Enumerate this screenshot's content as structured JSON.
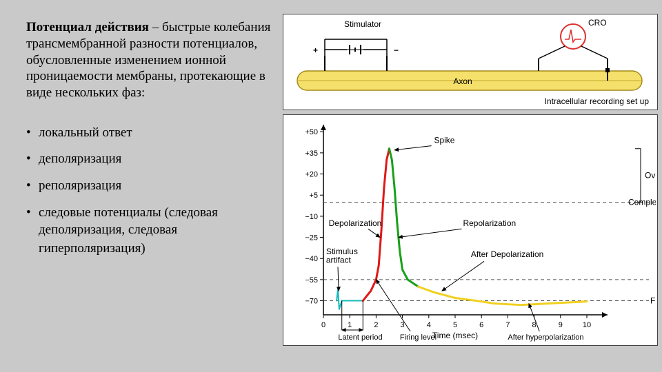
{
  "text": {
    "title_bold": "Потенциал действия",
    "title_rest": " – быстрые колебания трансмембранной разности потенциалов, обусловленные изменением ионной проницаемости мембраны, протекающие в виде нескольких фаз:",
    "bullets": [
      "локальный ответ",
      "деполяризация",
      "реполяризация",
      "следовые потенциалы (следовая деполяризация, следовая"
    ],
    "bullet4_cont": "гиперполяризация)"
  },
  "fig_top": {
    "labels": {
      "stimulator": "Stimulator",
      "cro": "CRO",
      "axon": "Axon",
      "setup": "Intracellular recording set up",
      "plus": "+",
      "minus": "−"
    },
    "colors": {
      "axon_fill": "#f4e06a",
      "axon_stroke": "#a48a1a",
      "electrode": "#000000",
      "cro_circle": "#e03030",
      "cro_trace": "#e03030",
      "bg": "#ffffff"
    }
  },
  "chart": {
    "type": "line",
    "x_axis": {
      "label": "Time (msec)",
      "ticks": [
        0,
        1,
        2,
        3,
        4,
        5,
        6,
        7,
        8,
        9,
        10
      ],
      "xlim": [
        0,
        10
      ]
    },
    "y_axis": {
      "ticks": [
        -70,
        -55,
        -40,
        -25,
        -10,
        5,
        20,
        35,
        50
      ],
      "tick_labels": [
        "−70",
        "−55",
        "−40",
        "−25",
        "−10",
        "+5",
        "+20",
        "+35",
        "+50"
      ],
      "ylim": [
        -80,
        55
      ]
    },
    "colors": {
      "bg": "#ffffff",
      "axis": "#000000",
      "dash": "#555555",
      "stim_artifact": "#16b9b9",
      "latent": "#16b9b9",
      "depol": "#e01818",
      "repol": "#18a018",
      "after_depol": "#f0d020",
      "after_hyper": "#f0d020",
      "arrow": "#000000"
    },
    "dashed_lines_y": [
      0,
      -55,
      -70
    ],
    "series": {
      "stim_artifact": {
        "points": [
          [
            0.5,
            -70
          ],
          [
            0.55,
            -62
          ],
          [
            0.6,
            -76
          ],
          [
            0.7,
            -70
          ]
        ],
        "width": 2
      },
      "latent": {
        "points": [
          [
            0.7,
            -70
          ],
          [
            1.5,
            -70
          ]
        ],
        "width": 2
      },
      "depol": {
        "points": [
          [
            1.5,
            -70
          ],
          [
            1.8,
            -63
          ],
          [
            2.0,
            -55
          ],
          [
            2.1,
            -45
          ],
          [
            2.2,
            -20
          ],
          [
            2.3,
            10
          ],
          [
            2.4,
            30
          ],
          [
            2.5,
            38
          ]
        ],
        "width": 3
      },
      "repol": {
        "points": [
          [
            2.5,
            38
          ],
          [
            2.6,
            30
          ],
          [
            2.7,
            10
          ],
          [
            2.8,
            -15
          ],
          [
            2.9,
            -35
          ],
          [
            3.0,
            -48
          ],
          [
            3.2,
            -55
          ],
          [
            3.6,
            -60
          ]
        ],
        "width": 3
      },
      "after_depol": {
        "points": [
          [
            3.6,
            -60
          ],
          [
            4.2,
            -64
          ],
          [
            5.0,
            -68
          ],
          [
            5.8,
            -70
          ]
        ],
        "width": 3
      },
      "after_hyper": {
        "points": [
          [
            5.8,
            -70
          ],
          [
            6.5,
            -72
          ],
          [
            7.5,
            -73
          ],
          [
            8.5,
            -72
          ],
          [
            9.5,
            -71
          ],
          [
            10,
            -70.5
          ]
        ],
        "width": 3
      }
    },
    "annotations": {
      "spike": "Spike",
      "overshoot": "Overshoot",
      "complete": "Complete",
      "depolarization": "Depolarization",
      "repolarization": "Repolarization",
      "stimulus_artifact": "Stimulus artifact",
      "after_depol": "After Depolarization",
      "latent_period": "Latent period",
      "firing_level": "Firing level",
      "after_hyper": "After hyperpolarization",
      "f_right": "F"
    },
    "brackets": {
      "overshoot_y": [
        0,
        38
      ],
      "latent_x": [
        0.7,
        1.5
      ]
    },
    "label_fontsize": 12,
    "tick_fontsize": 11
  }
}
